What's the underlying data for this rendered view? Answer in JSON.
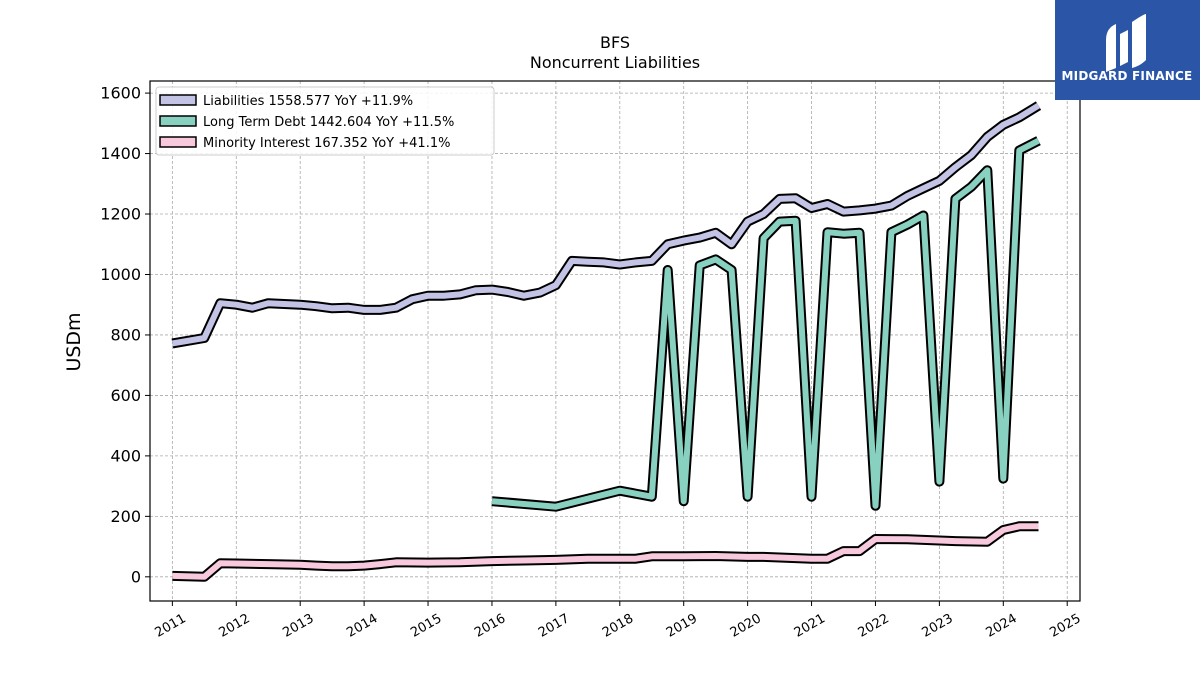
{
  "brand": {
    "name": "MIDGARD FINANCE",
    "bg_color": "#2b56a8"
  },
  "chart_data": {
    "type": "line",
    "title": "BFS",
    "subtitle": "Noncurrent  Liabilities",
    "xlabel": "",
    "ylabel": "USDm",
    "x_ticks": [
      "2011",
      "2012",
      "2013",
      "2014",
      "2015",
      "2016",
      "2017",
      "2018",
      "2019",
      "2020",
      "2021",
      "2022",
      "2023",
      "2024",
      "2025"
    ],
    "y_ticks": [
      "0",
      "200",
      "400",
      "600",
      "800",
      "1000",
      "1200",
      "1400",
      "1600"
    ],
    "xlim": [
      2010.65,
      2025.2
    ],
    "ylim": [
      -80,
      1640
    ],
    "grid": true,
    "legend_position": "top-left",
    "series": [
      {
        "name": "Liabilities  1558.577 YoY +11.9%",
        "color": "#c3c3e6",
        "values": [
          [
            2011.0,
            772
          ],
          [
            2011.5,
            790
          ],
          [
            2011.75,
            905
          ],
          [
            2012.0,
            900
          ],
          [
            2012.25,
            890
          ],
          [
            2012.5,
            905
          ],
          [
            2013.0,
            900
          ],
          [
            2013.25,
            895
          ],
          [
            2013.5,
            888
          ],
          [
            2013.75,
            890
          ],
          [
            2014.0,
            883
          ],
          [
            2014.25,
            883
          ],
          [
            2014.5,
            890
          ],
          [
            2014.75,
            918
          ],
          [
            2015.0,
            930
          ],
          [
            2015.25,
            930
          ],
          [
            2015.5,
            934
          ],
          [
            2015.75,
            948
          ],
          [
            2016.0,
            950
          ],
          [
            2016.25,
            942
          ],
          [
            2016.5,
            930
          ],
          [
            2016.75,
            940
          ],
          [
            2017.0,
            965
          ],
          [
            2017.25,
            1045
          ],
          [
            2017.5,
            1042
          ],
          [
            2017.75,
            1040
          ],
          [
            2018.0,
            1033
          ],
          [
            2018.25,
            1040
          ],
          [
            2018.5,
            1045
          ],
          [
            2018.75,
            1100
          ],
          [
            2019.0,
            1112
          ],
          [
            2019.25,
            1122
          ],
          [
            2019.5,
            1138
          ],
          [
            2019.75,
            1100
          ],
          [
            2020.0,
            1175
          ],
          [
            2020.25,
            1200
          ],
          [
            2020.5,
            1250
          ],
          [
            2020.75,
            1252
          ],
          [
            2021.0,
            1220
          ],
          [
            2021.25,
            1233
          ],
          [
            2021.5,
            1208
          ],
          [
            2021.75,
            1212
          ],
          [
            2022.0,
            1218
          ],
          [
            2022.25,
            1228
          ],
          [
            2022.5,
            1260
          ],
          [
            2022.75,
            1285
          ],
          [
            2023.0,
            1310
          ],
          [
            2023.25,
            1355
          ],
          [
            2023.5,
            1395
          ],
          [
            2023.75,
            1455
          ],
          [
            2024.0,
            1495
          ],
          [
            2024.25,
            1520
          ],
          [
            2024.55,
            1558.577
          ]
        ]
      },
      {
        "name": "Long Term Debt  1442.604 YoY +11.5%",
        "color": "#88d0c0",
        "values": [
          [
            2016.0,
            250
          ],
          [
            2017.0,
            232
          ],
          [
            2018.0,
            285
          ],
          [
            2018.5,
            265
          ],
          [
            2018.75,
            1015
          ],
          [
            2019.0,
            250
          ],
          [
            2019.25,
            1030
          ],
          [
            2019.5,
            1050
          ],
          [
            2019.75,
            1015
          ],
          [
            2020.0,
            265
          ],
          [
            2020.25,
            1120
          ],
          [
            2020.5,
            1175
          ],
          [
            2020.75,
            1178
          ],
          [
            2021.0,
            265
          ],
          [
            2021.25,
            1140
          ],
          [
            2021.5,
            1135
          ],
          [
            2021.75,
            1138
          ],
          [
            2022.0,
            235
          ],
          [
            2022.25,
            1140
          ],
          [
            2022.5,
            1165
          ],
          [
            2022.75,
            1195
          ],
          [
            2023.0,
            315
          ],
          [
            2023.25,
            1250
          ],
          [
            2023.5,
            1290
          ],
          [
            2023.75,
            1345
          ],
          [
            2024.0,
            325
          ],
          [
            2024.25,
            1410
          ],
          [
            2024.55,
            1442.604
          ]
        ]
      },
      {
        "name": "Minority Interest  167.352 YoY +41.1%",
        "color": "#f8c8dc",
        "values": [
          [
            2011.0,
            3
          ],
          [
            2011.5,
            0
          ],
          [
            2011.75,
            45
          ],
          [
            2012.0,
            44
          ],
          [
            2012.5,
            42
          ],
          [
            2013.0,
            40
          ],
          [
            2013.25,
            37
          ],
          [
            2013.5,
            35
          ],
          [
            2013.75,
            35
          ],
          [
            2014.0,
            37
          ],
          [
            2014.25,
            42
          ],
          [
            2014.5,
            48
          ],
          [
            2015.0,
            47
          ],
          [
            2015.5,
            48
          ],
          [
            2016.0,
            52
          ],
          [
            2016.5,
            54
          ],
          [
            2017.0,
            56
          ],
          [
            2017.5,
            60
          ],
          [
            2018.0,
            60
          ],
          [
            2018.25,
            60
          ],
          [
            2018.5,
            68
          ],
          [
            2019.0,
            68
          ],
          [
            2019.5,
            69
          ],
          [
            2020.0,
            66
          ],
          [
            2020.25,
            66
          ],
          [
            2020.5,
            64
          ],
          [
            2021.0,
            60
          ],
          [
            2021.25,
            60
          ],
          [
            2021.5,
            85
          ],
          [
            2021.75,
            85
          ],
          [
            2022.0,
            125
          ],
          [
            2022.5,
            124
          ],
          [
            2023.0,
            120
          ],
          [
            2023.25,
            118
          ],
          [
            2023.75,
            116
          ],
          [
            2024.0,
            155
          ],
          [
            2024.25,
            167
          ],
          [
            2024.55,
            167.352
          ]
        ]
      }
    ]
  }
}
